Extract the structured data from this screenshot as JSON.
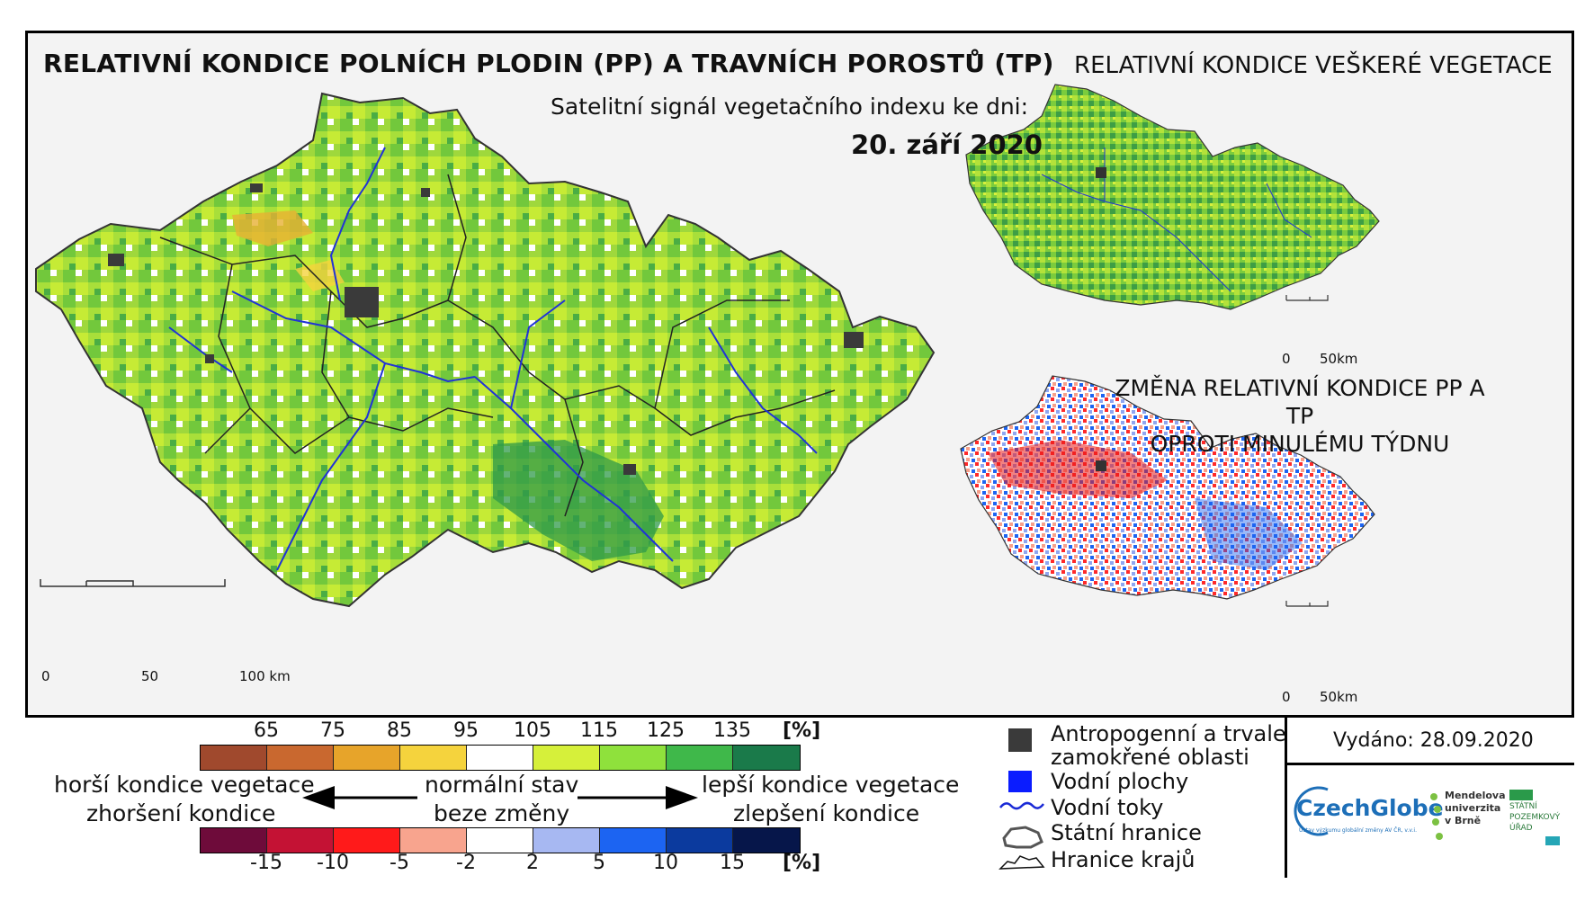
{
  "main_map": {
    "title": "RELATIVNÍ KONDICE POLNÍCH PLODIN (PP) A TRAVNÍCH POROSTŮ (TP)",
    "subtitle": "Satelitní signál vegetačního indexu ke dni:",
    "date": "20. září 2020",
    "scalebar": {
      "labels": [
        "0",
        "50",
        "100 km"
      ]
    }
  },
  "inset_vegetation": {
    "title": "RELATIVNÍ KONDICE VEŠKERÉ VEGETACE",
    "scalebar": {
      "labels": [
        "0",
        "50km"
      ]
    }
  },
  "inset_change": {
    "title_line1": "ZMĚNA RELATIVNÍ KONDICE PP A TP",
    "title_line2": "OPROTI MINULÉMU TÝDNU",
    "scalebar": {
      "labels": [
        "0",
        "50km"
      ]
    }
  },
  "legend": {
    "condition": {
      "ticks": [
        "65",
        "75",
        "85",
        "95",
        "105",
        "115",
        "125",
        "135"
      ],
      "unit": "[%]",
      "colors": [
        "#a0492d",
        "#c9682f",
        "#e7a42a",
        "#f5d33d",
        "#ffffff",
        "#d6f03a",
        "#8fe13c",
        "#3fb84a",
        "#1a7a4a"
      ],
      "left_label": "horší kondice vegetace",
      "center_label": "normální stav",
      "right_label": "lepší kondice vegetace"
    },
    "change": {
      "ticks": [
        "-15",
        "-10",
        "-5",
        "-2",
        "2",
        "5",
        "10",
        "15"
      ],
      "unit": "[%]",
      "colors": [
        "#6e0b3a",
        "#c41234",
        "#ff1a1a",
        "#f8a48e",
        "#ffffff",
        "#a7b8f2",
        "#1c64f2",
        "#0b3a9e",
        "#06164a"
      ],
      "left_label": "zhoršení kondice",
      "center_label": "beze změny",
      "right_label": "zlepšení kondice"
    },
    "symbols": {
      "anthropogenic": {
        "line1": "Antropogenní a trvale",
        "line2": "zamokřené oblasti",
        "color": "#3a3a3a"
      },
      "water_areas": {
        "label": "Vodní plochy",
        "color": "#0a1cff"
      },
      "streams": {
        "label": "Vodní toky",
        "color": "#1a2ad6"
      },
      "state_border": {
        "label": "Státní hranice"
      },
      "region_border": {
        "label": "Hranice krajů"
      }
    },
    "issued": "Vydáno: 28.09.2020"
  },
  "logos": {
    "czechglobe": "CzechGlobe",
    "czechglobe_sub": "Ústav výzkumu globální změny AV ČR, v.v.i.",
    "mendel_line1": "Mendelova",
    "mendel_line2": "univerzita",
    "mendel_line3": "v Brně",
    "spu_line1": "STÁTNÍ",
    "spu_line2": "POZEMKOVÝ",
    "spu_line3": "ÚŘAD"
  }
}
